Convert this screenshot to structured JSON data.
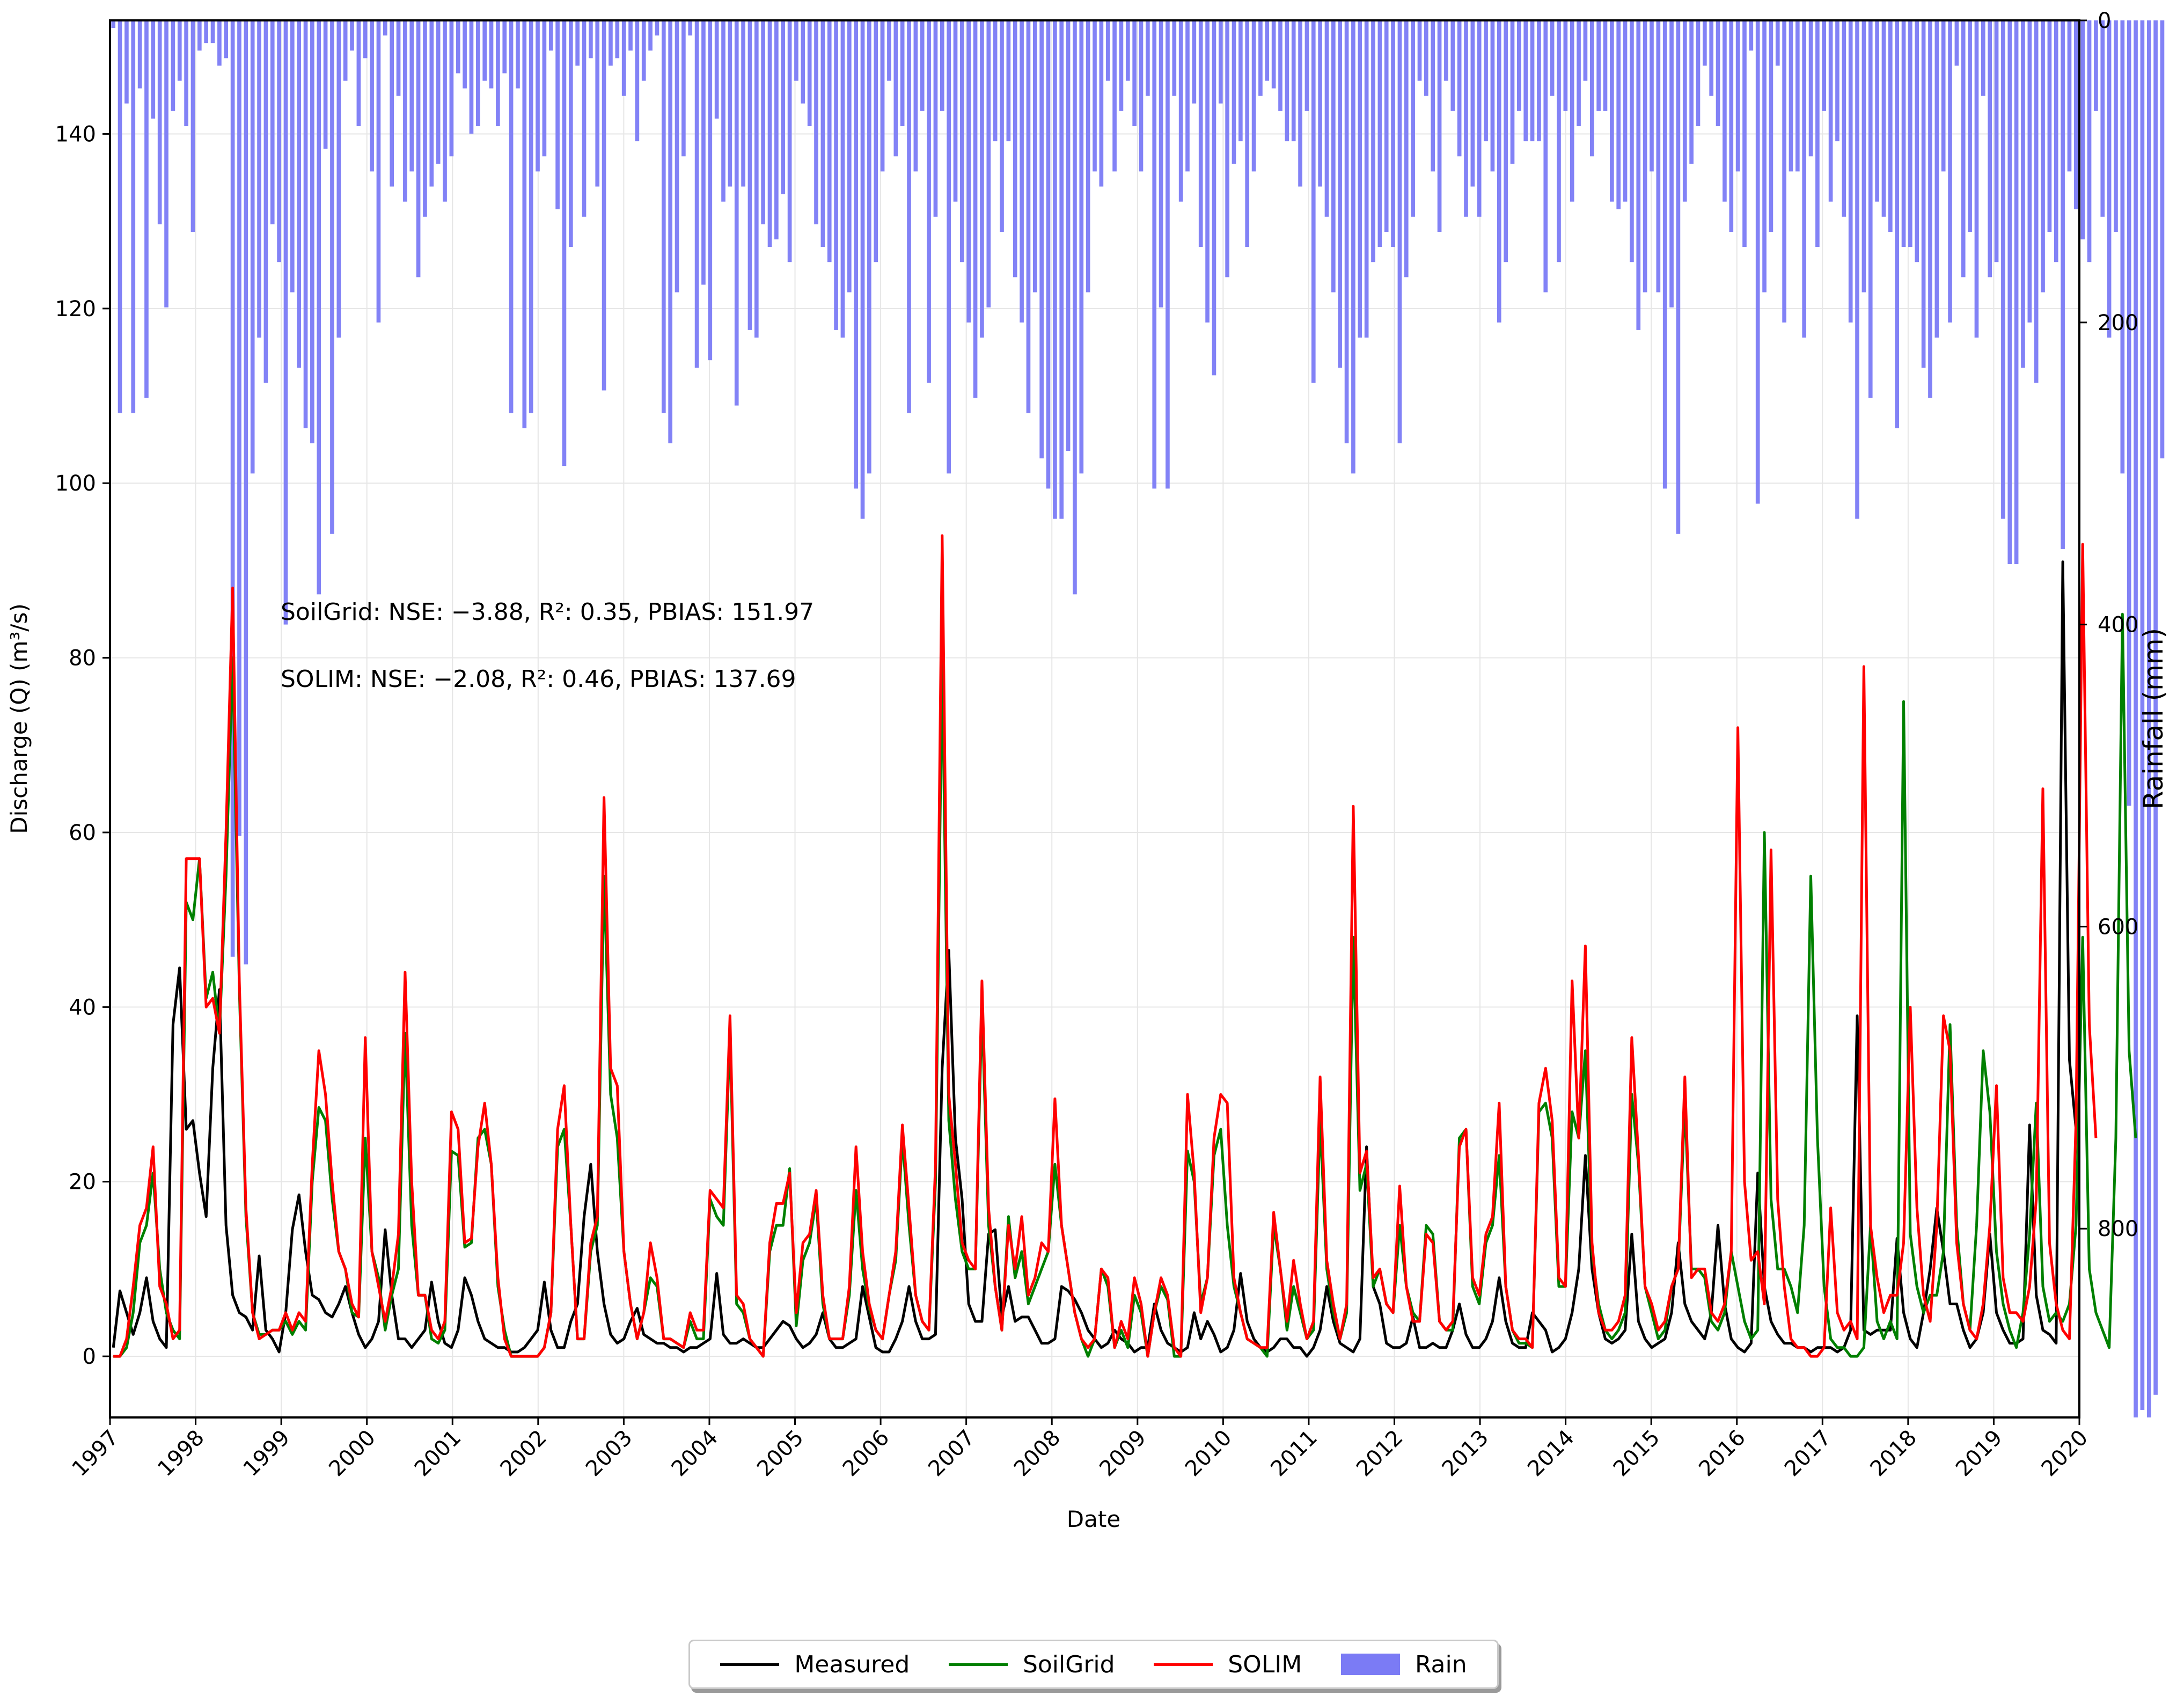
{
  "chart_data": {
    "type": "line",
    "title": "",
    "xlabel": "Date",
    "ylabel_left": "Discharge (Q) (m³/s)",
    "ylabel_right": "Rainfall (mm)",
    "x_range": [
      "1997-01",
      "2020-01"
    ],
    "x_ticks": [
      "1997",
      "1998",
      "1999",
      "2000",
      "2001",
      "2002",
      "2003",
      "2004",
      "2005",
      "2006",
      "2007",
      "2008",
      "2009",
      "2010",
      "2011",
      "2012",
      "2013",
      "2014",
      "2015",
      "2016",
      "2017",
      "2018",
      "2019",
      "2020"
    ],
    "ylim_left": [
      -7,
      153
    ],
    "yticks_left": [
      0,
      20,
      40,
      60,
      80,
      100,
      120,
      140
    ],
    "ylim_right_inverted": [
      0,
      925
    ],
    "yticks_right": [
      0,
      200,
      400,
      600,
      800
    ],
    "grid": true,
    "legend_position": "bottom-center",
    "annotations": [
      "SoilGrid: NSE: −3.88, R²: 0.35, PBIAS: 151.97",
      "SOLIM: NSE: −2.08, R²: 0.46, PBIAS: 137.69"
    ],
    "series": [
      {
        "name": "Measured",
        "color": "#000000",
        "values": [
          1,
          7.5,
          5,
          2.5,
          5,
          9,
          4,
          2,
          1,
          38,
          44.5,
          26,
          27,
          21,
          16,
          33,
          42,
          15,
          7,
          5,
          4.5,
          3,
          11.5,
          3,
          2,
          0.5,
          5,
          14.5,
          18.5,
          12,
          7,
          6.5,
          5,
          4.5,
          6,
          8,
          5,
          2.5,
          1,
          2,
          4,
          14.5,
          7,
          2,
          2,
          1,
          2,
          3,
          8.5,
          4,
          1.5,
          1,
          3,
          9,
          7,
          4,
          2,
          1.5,
          1,
          1,
          0.5,
          0.5,
          1,
          2,
          3,
          8.5,
          3,
          1,
          1,
          4,
          6,
          16,
          22,
          12,
          6,
          2.5,
          1.5,
          2,
          4,
          5.5,
          2.5,
          2,
          1.5,
          1.5,
          1,
          1,
          0.5,
          1,
          1,
          1.5,
          2,
          9.5,
          2.5,
          1.5,
          1.5,
          2,
          1.5,
          1,
          1,
          2,
          3,
          4,
          3.5,
          2,
          1,
          1.5,
          2.5,
          5,
          2,
          1,
          1,
          1.5,
          2,
          8,
          4.5,
          1,
          0.5,
          0.5,
          2,
          4,
          8,
          4,
          2,
          2,
          2.5,
          33,
          46.5,
          25,
          18,
          6,
          4,
          4,
          14,
          14.5,
          4.5,
          8,
          4,
          4.5,
          4.5,
          3,
          1.5,
          1.5,
          2,
          8,
          7.5,
          6.5,
          5,
          3,
          2,
          1,
          1.5,
          3,
          2,
          1.5,
          0.5,
          1,
          1,
          6,
          3,
          1.5,
          1,
          0.5,
          1,
          5,
          2,
          4,
          2.5,
          0.5,
          1,
          3,
          9.5,
          4,
          2,
          1,
          0.5,
          1,
          2,
          2,
          1,
          1,
          0,
          1,
          3,
          8,
          4,
          1.5,
          1,
          0.5,
          2,
          24,
          8,
          6,
          1.5,
          1,
          1,
          1.5,
          4.5,
          1,
          1,
          1.5,
          1,
          1,
          3,
          6,
          2.5,
          1,
          1,
          2,
          4,
          9,
          4,
          1.5,
          1,
          1,
          5,
          4,
          3,
          0.5,
          1,
          2,
          5,
          10,
          23,
          10,
          5,
          2,
          1.5,
          2,
          3,
          14,
          4,
          2,
          1,
          1.5,
          2,
          5,
          13,
          6,
          4,
          3,
          2,
          5,
          15,
          6,
          2,
          1,
          0.5,
          1.5,
          21,
          8,
          4,
          2.5,
          1.5,
          1.5,
          1,
          1,
          0.5,
          1,
          1,
          1,
          0.5,
          1,
          3,
          39,
          3,
          2.5,
          3,
          3,
          3,
          13.5,
          5,
          2,
          1,
          5,
          10,
          17,
          12,
          6,
          6,
          3,
          1,
          2,
          5,
          14,
          5,
          3,
          1.5,
          1.5,
          2,
          26.5,
          7,
          3,
          2.5,
          1.5,
          91,
          34,
          26
        ]
      },
      {
        "name": "SoilGrid",
        "color": "#008000",
        "values": [
          0,
          0,
          1,
          5,
          13,
          15,
          21,
          10,
          5,
          3,
          2,
          52,
          50,
          57,
          41,
          44,
          37,
          55,
          80,
          42,
          16,
          5,
          2.5,
          2.5,
          3,
          3,
          4,
          2.5,
          4,
          3,
          20,
          28.5,
          27,
          18,
          12,
          10,
          5,
          4.5,
          25,
          12,
          9,
          3,
          7,
          10,
          37,
          15,
          7,
          7,
          2,
          1.5,
          3,
          23.5,
          23,
          12.5,
          13,
          25,
          26,
          22,
          8,
          3,
          0,
          0,
          0,
          0,
          0,
          1,
          5,
          24,
          26,
          15,
          2,
          2,
          12,
          15,
          55,
          30,
          25,
          12,
          6,
          2,
          5,
          9,
          8,
          2,
          2,
          1.5,
          1,
          4,
          2,
          2,
          18,
          16,
          15,
          37,
          6,
          5,
          2,
          1,
          0,
          12,
          15,
          15,
          21.5,
          3.5,
          11,
          13,
          18,
          6,
          2,
          2,
          2,
          7,
          19,
          10,
          5.5,
          3,
          2,
          7,
          11,
          25,
          15,
          7,
          4,
          3,
          20,
          80,
          27,
          18,
          12,
          10,
          10,
          40,
          15,
          8,
          3,
          16,
          9,
          12,
          6,
          8,
          10,
          12,
          22,
          15,
          10,
          5,
          2,
          0,
          2,
          10,
          8,
          1,
          3,
          1,
          7,
          5,
          0,
          5,
          8,
          6.5,
          0,
          0,
          23.5,
          20,
          6,
          9,
          23,
          26,
          15,
          8,
          5,
          2,
          1.5,
          1,
          0,
          15,
          10,
          3,
          8,
          5,
          2,
          3,
          27,
          10,
          5,
          2,
          5,
          48,
          19,
          22,
          8,
          10,
          6,
          5,
          15,
          8,
          5,
          4,
          15,
          14,
          4,
          3,
          3,
          25,
          26,
          8,
          6,
          13,
          15,
          23,
          8,
          3,
          1.5,
          1.5,
          1,
          28,
          29,
          25,
          8,
          8,
          28,
          25,
          35,
          12,
          6,
          3,
          2,
          3,
          5,
          30,
          22,
          8,
          5,
          2,
          3,
          8,
          10,
          29,
          10,
          10,
          9,
          4,
          3,
          5,
          12,
          8,
          4,
          2,
          3,
          60,
          18,
          10,
          10,
          8,
          5,
          15,
          55,
          25,
          8,
          2,
          1,
          1,
          0,
          0,
          1,
          15,
          4,
          2,
          4,
          2,
          75,
          14,
          8,
          5,
          7,
          7,
          12,
          38,
          15,
          6,
          3,
          15,
          35,
          28,
          12,
          6,
          3,
          1,
          5,
          14,
          29,
          8,
          4,
          5,
          4,
          6,
          15,
          48,
          10,
          5,
          3,
          1,
          25,
          85,
          35,
          25
        ]
      },
      {
        "name": "SOLIM",
        "color": "#ff0000",
        "values": [
          0,
          0,
          2,
          8,
          15,
          17,
          24,
          8,
          6,
          2,
          3,
          57,
          57,
          57,
          40,
          41,
          37,
          60,
          88,
          43,
          17,
          5,
          2,
          2.5,
          3,
          3,
          5,
          3,
          5,
          4,
          22,
          35,
          30,
          20,
          12,
          10,
          6,
          4.5,
          36.5,
          12,
          8,
          4,
          8,
          14,
          44,
          20,
          7,
          7,
          3,
          2,
          4,
          28,
          26,
          13,
          13.5,
          24,
          29,
          22,
          9,
          2,
          0,
          0,
          0,
          0,
          0,
          1,
          5,
          26,
          31,
          15,
          2,
          2,
          13,
          16,
          64,
          33,
          31,
          12,
          6,
          2,
          5,
          13,
          9,
          2,
          2,
          1.5,
          1,
          5,
          3,
          3,
          19,
          18,
          17,
          39,
          7,
          6,
          2,
          1,
          0,
          13,
          17.5,
          17.5,
          21,
          5,
          13,
          14,
          19,
          7,
          2,
          2,
          2,
          8,
          24,
          12,
          6,
          3,
          2,
          7,
          12,
          26.5,
          17,
          7,
          4,
          3,
          22,
          94,
          30,
          22,
          13,
          11,
          10,
          43,
          17,
          8,
          3,
          15,
          10,
          16,
          7,
          9,
          13,
          12,
          29.5,
          15,
          10,
          5,
          2,
          1,
          2,
          10,
          9,
          1,
          4,
          2,
          9,
          6,
          0,
          5,
          9,
          7,
          1,
          0,
          30,
          21,
          5,
          9,
          25,
          30,
          29,
          9,
          5,
          2,
          1.5,
          1,
          1,
          16.5,
          10,
          4,
          11,
          6,
          2,
          4,
          32,
          11,
          6,
          2,
          6,
          63,
          21,
          23.5,
          9,
          10,
          6,
          5,
          19.5,
          8,
          4,
          4,
          14,
          13,
          4,
          3,
          4,
          24,
          26,
          9,
          7,
          14,
          16,
          29,
          8,
          3,
          2,
          2,
          1,
          29,
          33,
          27,
          9,
          8,
          43,
          25,
          47,
          13,
          5,
          3,
          3,
          4,
          7,
          36.5,
          23,
          8,
          6,
          3,
          4,
          8,
          10,
          32,
          9,
          10,
          10,
          5,
          4,
          6,
          12,
          72,
          20,
          11,
          12,
          6,
          58,
          18,
          8,
          2,
          1,
          1,
          0,
          0,
          1,
          17,
          5,
          3,
          4,
          2,
          79,
          15,
          9,
          5,
          7,
          7,
          13,
          40,
          17,
          7,
          4,
          15,
          39,
          35,
          13,
          6,
          3,
          2,
          6,
          15,
          31,
          9,
          5,
          5,
          4,
          8,
          18,
          65,
          13,
          6,
          3,
          2,
          27,
          93,
          38,
          25
        ]
      },
      {
        "name": "Rain",
        "color": "#7b7bf5",
        "values": [
          5,
          260,
          55,
          260,
          45,
          250,
          65,
          135,
          190,
          60,
          40,
          70,
          140,
          20,
          15,
          15,
          30,
          25,
          620,
          540,
          625,
          300,
          210,
          240,
          135,
          160,
          400,
          180,
          230,
          270,
          280,
          380,
          85,
          340,
          210,
          40,
          20,
          70,
          25,
          100,
          200,
          10,
          110,
          50,
          120,
          100,
          170,
          130,
          110,
          95,
          120,
          90,
          35,
          45,
          75,
          70,
          40,
          45,
          70,
          35,
          260,
          45,
          270,
          260,
          100,
          90,
          20,
          125,
          295,
          150,
          30,
          130,
          25,
          110,
          245,
          30,
          25,
          50,
          20,
          80,
          40,
          20,
          10,
          260,
          280,
          180,
          90,
          10,
          230,
          175,
          225,
          65,
          120,
          110,
          255,
          110,
          205,
          210,
          135,
          150,
          145,
          115,
          160,
          40,
          55,
          70,
          135,
          150,
          160,
          205,
          210,
          180,
          310,
          330,
          300,
          160,
          100,
          40,
          90,
          70,
          260,
          100,
          60,
          240,
          130,
          60,
          300,
          120,
          160,
          200,
          250,
          210,
          190,
          80,
          140,
          80,
          170,
          200,
          260,
          180,
          290,
          310,
          330,
          330,
          285,
          380,
          300,
          180,
          100,
          110,
          40,
          100,
          60,
          40,
          70,
          100,
          50,
          310,
          190,
          310,
          50,
          120,
          100,
          55,
          150,
          200,
          235,
          55,
          170,
          95,
          80,
          150,
          100,
          50,
          40,
          45,
          60,
          80,
          80,
          110,
          60,
          240,
          110,
          130,
          180,
          230,
          280,
          300,
          210,
          210,
          160,
          150,
          140,
          150,
          280,
          170,
          130,
          40,
          50,
          100,
          140,
          40,
          60,
          90,
          130,
          110,
          130,
          80,
          100,
          200,
          160,
          95,
          60,
          80,
          80,
          80,
          180,
          50,
          160,
          60,
          120,
          70,
          40,
          90,
          60,
          60,
          120,
          125,
          120,
          160,
          205,
          180,
          100,
          180,
          310,
          190,
          340,
          120,
          95,
          70,
          30,
          50,
          70,
          120,
          140,
          100,
          150,
          20,
          320,
          180,
          140,
          30,
          200,
          100,
          100,
          210,
          90,
          150,
          60,
          120,
          80,
          130,
          200,
          330,
          180,
          250,
          120,
          130,
          140,
          270,
          150,
          150,
          160,
          230,
          250,
          210,
          100,
          200,
          30,
          170,
          140,
          210,
          50,
          170,
          160,
          330,
          360,
          360,
          230,
          200,
          240,
          180,
          140,
          160,
          350,
          100,
          125,
          145,
          160,
          60,
          130,
          210,
          140,
          300,
          520,
          940,
          920,
          1000,
          910,
          290
        ]
      }
    ]
  },
  "legend": {
    "items": [
      {
        "label": "Measured",
        "color": "#000000",
        "kind": "line"
      },
      {
        "label": "SoilGrid",
        "color": "#008000",
        "kind": "line"
      },
      {
        "label": "SOLIM",
        "color": "#ff0000",
        "kind": "line"
      },
      {
        "label": "Rain",
        "color": "#7b7bf5",
        "kind": "patch"
      }
    ]
  }
}
